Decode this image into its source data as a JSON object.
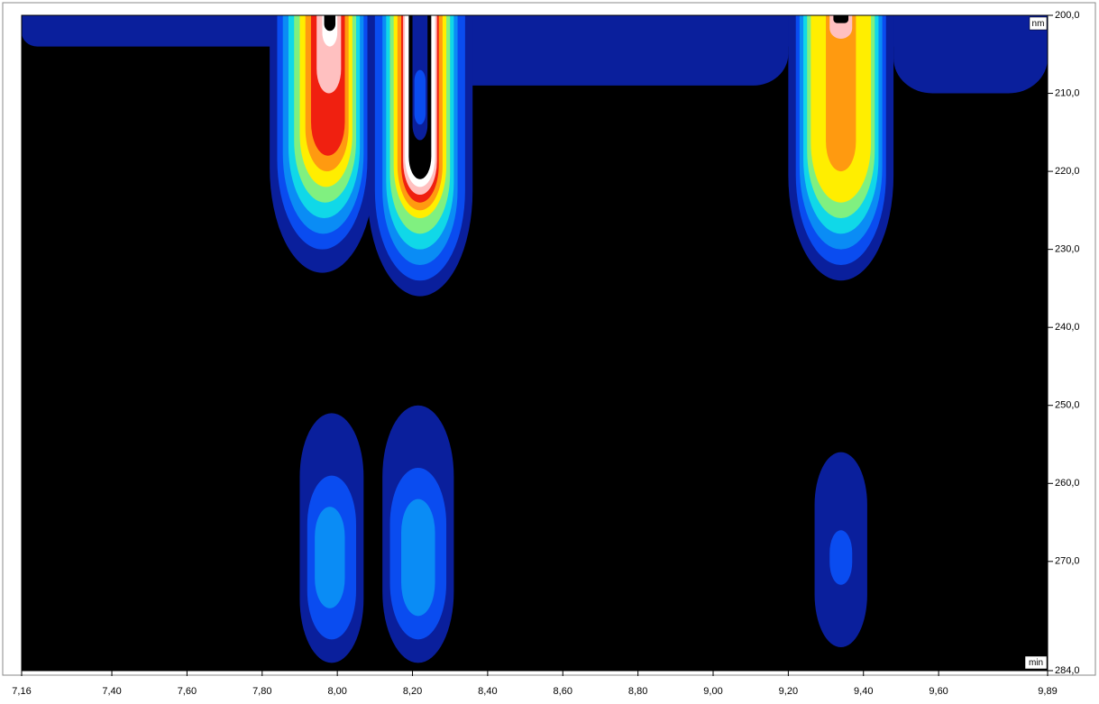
{
  "chart_data": {
    "type": "contour",
    "x_unit": "min",
    "y_unit": "nm",
    "background": "#000000",
    "xlim": [
      7.16,
      9.89
    ],
    "ylim": [
      200,
      284
    ],
    "xticks": [
      {
        "value": 7.16,
        "label": "7,16"
      },
      {
        "value": 7.4,
        "label": "7,40"
      },
      {
        "value": 7.6,
        "label": "7,60"
      },
      {
        "value": 7.8,
        "label": "7,80"
      },
      {
        "value": 8.0,
        "label": "8,00"
      },
      {
        "value": 8.2,
        "label": "8,20"
      },
      {
        "value": 8.4,
        "label": "8,40"
      },
      {
        "value": 8.6,
        "label": "8,60"
      },
      {
        "value": 8.8,
        "label": "8,80"
      },
      {
        "value": 9.0,
        "label": "9,00"
      },
      {
        "value": 9.2,
        "label": "9,20"
      },
      {
        "value": 9.4,
        "label": "9,40"
      },
      {
        "value": 9.6,
        "label": "9,60"
      },
      {
        "value": 9.89,
        "label": "9,89"
      }
    ],
    "yticks": [
      {
        "value": 200,
        "label": "200,0"
      },
      {
        "value": 210,
        "label": "210,0"
      },
      {
        "value": 220,
        "label": "220,0"
      },
      {
        "value": 230,
        "label": "230,0"
      },
      {
        "value": 240,
        "label": "240,0"
      },
      {
        "value": 250,
        "label": "250,0"
      },
      {
        "value": 260,
        "label": "260,0"
      },
      {
        "value": 270,
        "label": "270,0"
      },
      {
        "value": 284,
        "label": "284,0"
      }
    ],
    "levels": [
      {
        "color": "#0a1f9c",
        "shapes": [
          {
            "x": [
              7.16,
              9.89
            ],
            "y": [
              200,
              204
            ]
          },
          {
            "x": [
              7.84,
              9.2
            ],
            "y": [
              200,
              209
            ]
          },
          {
            "x": [
              9.48,
              9.89
            ],
            "y": [
              200,
              210
            ]
          },
          {
            "x": [
              7.82,
              8.1
            ],
            "y": [
              200,
              233
            ]
          },
          {
            "x": [
              8.08,
              8.36
            ],
            "y": [
              200,
              236
            ]
          },
          {
            "x": [
              9.2,
              9.48
            ],
            "y": [
              200,
              234
            ]
          },
          {
            "x": [
              7.9,
              8.07
            ],
            "y": [
              251,
              283
            ]
          },
          {
            "x": [
              8.12,
              8.31
            ],
            "y": [
              250,
              283
            ]
          },
          {
            "x": [
              9.27,
              9.41
            ],
            "y": [
              256,
              281
            ]
          }
        ]
      },
      {
        "color": "#0a4cf0",
        "shapes": [
          {
            "x": [
              7.84,
              8.08
            ],
            "y": [
              200,
              230
            ]
          },
          {
            "x": [
              8.1,
              8.34
            ],
            "y": [
              200,
              234
            ]
          },
          {
            "x": [
              9.22,
              9.46
            ],
            "y": [
              200,
              232
            ]
          },
          {
            "x": [
              7.92,
              8.05
            ],
            "y": [
              259,
              280
            ]
          },
          {
            "x": [
              8.14,
              8.29
            ],
            "y": [
              258,
              280
            ]
          },
          {
            "x": [
              9.31,
              9.37
            ],
            "y": [
              266,
              273
            ]
          }
        ]
      },
      {
        "color": "#0a8cf5",
        "shapes": [
          {
            "x": [
              7.855,
              8.07
            ],
            "y": [
              200,
              228
            ]
          },
          {
            "x": [
              8.12,
              8.32
            ],
            "y": [
              200,
              232
            ]
          },
          {
            "x": [
              9.23,
              9.45
            ],
            "y": [
              200,
              230
            ]
          },
          {
            "x": [
              7.94,
              8.02
            ],
            "y": [
              263,
              276
            ]
          },
          {
            "x": [
              8.17,
              8.26
            ],
            "y": [
              262,
              277
            ]
          }
        ]
      },
      {
        "color": "#10d8e8",
        "shapes": [
          {
            "x": [
              7.87,
              8.06
            ],
            "y": [
              200,
              226
            ]
          },
          {
            "x": [
              8.13,
              8.31
            ],
            "y": [
              200,
              230
            ]
          },
          {
            "x": [
              9.24,
              9.44
            ],
            "y": [
              200,
              228
            ]
          }
        ]
      },
      {
        "color": "#80f080",
        "shapes": [
          {
            "x": [
              7.885,
              8.05
            ],
            "y": [
              200,
              224
            ]
          },
          {
            "x": [
              8.14,
              8.3
            ],
            "y": [
              200,
              228
            ]
          },
          {
            "x": [
              9.25,
              9.43
            ],
            "y": [
              200,
              226
            ]
          }
        ]
      },
      {
        "color": "#ffee00",
        "shapes": [
          {
            "x": [
              7.9,
              8.04
            ],
            "y": [
              200,
              222
            ]
          },
          {
            "x": [
              8.15,
              8.29
            ],
            "y": [
              200,
              226
            ]
          },
          {
            "x": [
              9.26,
              9.42
            ],
            "y": [
              200,
              224
            ]
          }
        ]
      },
      {
        "color": "#ff9a10",
        "shapes": [
          {
            "x": [
              7.915,
              8.03
            ],
            "y": [
              200,
              220
            ]
          },
          {
            "x": [
              8.16,
              8.28
            ],
            "y": [
              200,
              225
            ]
          },
          {
            "x": [
              9.3,
              9.38
            ],
            "y": [
              200,
              220
            ]
          }
        ]
      },
      {
        "color": "#f02010",
        "shapes": [
          {
            "x": [
              7.93,
              8.02
            ],
            "y": [
              200,
              218
            ]
          },
          {
            "x": [
              8.17,
              8.27
            ],
            "y": [
              200,
              224
            ]
          }
        ]
      },
      {
        "color": "#ffc0c0",
        "shapes": [
          {
            "x": [
              7.945,
              8.01
            ],
            "y": [
              200,
              210
            ]
          },
          {
            "x": [
              8.175,
              8.265
            ],
            "y": [
              200,
              223
            ]
          },
          {
            "x": [
              9.31,
              9.37
            ],
            "y": [
              200,
              203
            ]
          }
        ]
      },
      {
        "color": "#ffffff",
        "shapes": [
          {
            "x": [
              7.96,
              8.0
            ],
            "y": [
              200,
              204
            ]
          },
          {
            "x": [
              8.18,
              8.26
            ],
            "y": [
              200,
              222
            ]
          }
        ]
      },
      {
        "color": "#000000",
        "shapes": [
          {
            "x": [
              7.965,
              7.995
            ],
            "y": [
              200,
              202
            ]
          },
          {
            "x": [
              8.19,
              8.25
            ],
            "y": [
              200,
              221
            ]
          },
          {
            "x": [
              9.32,
              9.36
            ],
            "y": [
              200,
              201
            ]
          }
        ]
      },
      {
        "color": "#0a1f9c",
        "shapes": [
          {
            "x": [
              8.2,
              8.24
            ],
            "y": [
              200,
              216
            ]
          }
        ]
      },
      {
        "color": "#0a4cf0",
        "shapes": [
          {
            "x": [
              8.205,
              8.235
            ],
            "y": [
              207,
              214
            ]
          }
        ]
      }
    ]
  }
}
